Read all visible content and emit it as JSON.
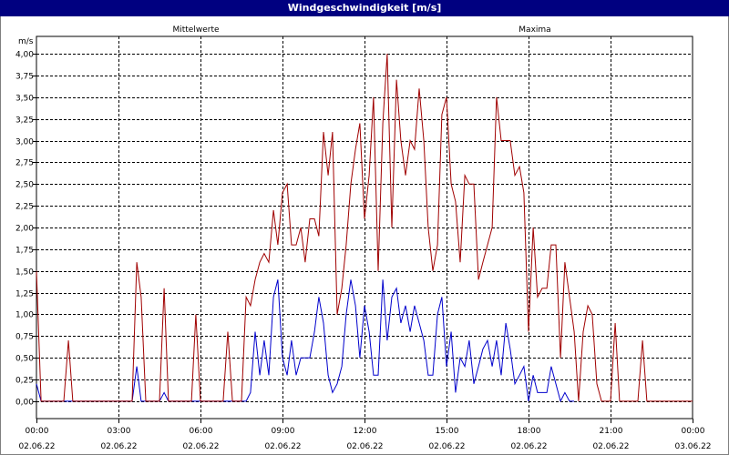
{
  "window": {
    "title": "Windgeschwindigkeit [m/s]"
  },
  "chart_data": {
    "type": "line",
    "title": "Windgeschwindigkeit [m/s]",
    "ylabel": "m/s",
    "xlabel": "",
    "xlim": [
      0,
      24
    ],
    "ylim": [
      -0.2,
      4.2
    ],
    "grid": true,
    "legend_placement": "top",
    "y_ticks": [
      {
        "v": 4.0,
        "label": "4,00"
      },
      {
        "v": 3.75,
        "label": "3,75"
      },
      {
        "v": 3.5,
        "label": "3,50"
      },
      {
        "v": 3.25,
        "label": "3,25"
      },
      {
        "v": 3.0,
        "label": "3,00"
      },
      {
        "v": 2.75,
        "label": "2,75"
      },
      {
        "v": 2.5,
        "label": "2,50"
      },
      {
        "v": 2.25,
        "label": "2,25"
      },
      {
        "v": 2.0,
        "label": "2,00"
      },
      {
        "v": 1.75,
        "label": "1,75"
      },
      {
        "v": 1.5,
        "label": "1,50"
      },
      {
        "v": 1.25,
        "label": "1,25"
      },
      {
        "v": 1.0,
        "label": "1,00"
      },
      {
        "v": 0.75,
        "label": "0,75"
      },
      {
        "v": 0.5,
        "label": "0,50"
      },
      {
        "v": 0.25,
        "label": "0,25"
      },
      {
        "v": 0.0,
        "label": "0,00"
      }
    ],
    "x_ticks": [
      {
        "v": 0,
        "time": "00:00",
        "date": "02.06.22"
      },
      {
        "v": 3,
        "time": "03:00",
        "date": "02.06.22"
      },
      {
        "v": 6,
        "time": "06:00",
        "date": "02.06.22"
      },
      {
        "v": 9,
        "time": "09:00",
        "date": "02.06.22"
      },
      {
        "v": 12,
        "time": "12:00",
        "date": "02.06.22"
      },
      {
        "v": 15,
        "time": "15:00",
        "date": "02.06.22"
      },
      {
        "v": 18,
        "time": "18:00",
        "date": "02.06.22"
      },
      {
        "v": 21,
        "time": "21:00",
        "date": "02.06.22"
      },
      {
        "v": 24,
        "time": "00:00",
        "date": "03.06.22"
      }
    ],
    "series": [
      {
        "name": "Mittelwerte",
        "color": "#0000cc",
        "points": [
          [
            0,
            0.2
          ],
          [
            0.17,
            0
          ],
          [
            3.5,
            0
          ],
          [
            3.67,
            0.4
          ],
          [
            3.83,
            0
          ],
          [
            4.5,
            0
          ],
          [
            4.67,
            0.1
          ],
          [
            4.83,
            0
          ],
          [
            7.67,
            0
          ],
          [
            7.83,
            0.1
          ],
          [
            8,
            0.8
          ],
          [
            8.17,
            0.3
          ],
          [
            8.33,
            0.7
          ],
          [
            8.5,
            0.3
          ],
          [
            8.67,
            1.2
          ],
          [
            8.83,
            1.4
          ],
          [
            9,
            0.5
          ],
          [
            9.17,
            0.3
          ],
          [
            9.33,
            0.7
          ],
          [
            9.5,
            0.3
          ],
          [
            9.67,
            0.5
          ],
          [
            10,
            0.5
          ],
          [
            10.17,
            0.8
          ],
          [
            10.33,
            1.2
          ],
          [
            10.5,
            0.9
          ],
          [
            10.67,
            0.3
          ],
          [
            10.83,
            0.1
          ],
          [
            11,
            0.2
          ],
          [
            11.17,
            0.4
          ],
          [
            11.33,
            1.0
          ],
          [
            11.5,
            1.4
          ],
          [
            11.67,
            1.1
          ],
          [
            11.83,
            0.5
          ],
          [
            12,
            1.1
          ],
          [
            12.17,
            0.8
          ],
          [
            12.33,
            0.3
          ],
          [
            12.5,
            0.3
          ],
          [
            12.67,
            1.4
          ],
          [
            12.83,
            0.7
          ],
          [
            13,
            1.2
          ],
          [
            13.17,
            1.3
          ],
          [
            13.33,
            0.9
          ],
          [
            13.5,
            1.1
          ],
          [
            13.67,
            0.8
          ],
          [
            13.83,
            1.1
          ],
          [
            14,
            0.9
          ],
          [
            14.17,
            0.7
          ],
          [
            14.33,
            0.3
          ],
          [
            14.5,
            0.3
          ],
          [
            14.67,
            1.0
          ],
          [
            14.83,
            1.2
          ],
          [
            15,
            0.4
          ],
          [
            15.17,
            0.8
          ],
          [
            15.33,
            0.1
          ],
          [
            15.5,
            0.5
          ],
          [
            15.67,
            0.4
          ],
          [
            15.83,
            0.7
          ],
          [
            16,
            0.2
          ],
          [
            16.17,
            0.4
          ],
          [
            16.33,
            0.6
          ],
          [
            16.5,
            0.7
          ],
          [
            16.67,
            0.4
          ],
          [
            16.83,
            0.7
          ],
          [
            17,
            0.3
          ],
          [
            17.17,
            0.9
          ],
          [
            17.33,
            0.6
          ],
          [
            17.5,
            0.2
          ],
          [
            17.67,
            0.3
          ],
          [
            17.83,
            0.4
          ],
          [
            18,
            0
          ],
          [
            18.17,
            0.3
          ],
          [
            18.33,
            0.1
          ],
          [
            18.67,
            0.1
          ],
          [
            18.83,
            0.4
          ],
          [
            19,
            0.2
          ],
          [
            19.17,
            0
          ],
          [
            19.33,
            0.1
          ],
          [
            19.5,
            0
          ],
          [
            19.67,
            0
          ]
        ]
      },
      {
        "name": "Maxima",
        "color": "#a00000",
        "points": [
          [
            0,
            1.5
          ],
          [
            0.17,
            0
          ],
          [
            1.0,
            0
          ],
          [
            1.17,
            0.7
          ],
          [
            1.33,
            0
          ],
          [
            3.5,
            0
          ],
          [
            3.67,
            1.6
          ],
          [
            3.83,
            1.2
          ],
          [
            4.0,
            0
          ],
          [
            4.5,
            0
          ],
          [
            4.67,
            1.3
          ],
          [
            4.83,
            0
          ],
          [
            5.67,
            0
          ],
          [
            5.83,
            1.0
          ],
          [
            6.0,
            0
          ],
          [
            6.83,
            0
          ],
          [
            7.0,
            0.8
          ],
          [
            7.17,
            0
          ],
          [
            7.5,
            0
          ],
          [
            7.67,
            1.2
          ],
          [
            7.83,
            1.1
          ],
          [
            8,
            1.4
          ],
          [
            8.17,
            1.6
          ],
          [
            8.33,
            1.7
          ],
          [
            8.5,
            1.6
          ],
          [
            8.67,
            2.2
          ],
          [
            8.83,
            1.8
          ],
          [
            9,
            2.4
          ],
          [
            9.17,
            2.5
          ],
          [
            9.33,
            1.8
          ],
          [
            9.5,
            1.8
          ],
          [
            9.67,
            2.0
          ],
          [
            9.83,
            1.6
          ],
          [
            10,
            2.1
          ],
          [
            10.17,
            2.1
          ],
          [
            10.33,
            1.9
          ],
          [
            10.5,
            3.1
          ],
          [
            10.67,
            2.6
          ],
          [
            10.83,
            3.1
          ],
          [
            11,
            1.0
          ],
          [
            11.17,
            1.3
          ],
          [
            11.33,
            1.8
          ],
          [
            11.5,
            2.5
          ],
          [
            11.67,
            2.9
          ],
          [
            11.83,
            3.2
          ],
          [
            12,
            2.1
          ],
          [
            12.17,
            2.6
          ],
          [
            12.33,
            3.5
          ],
          [
            12.5,
            1.5
          ],
          [
            12.67,
            3.2
          ],
          [
            12.83,
            4.0
          ],
          [
            13,
            2.0
          ],
          [
            13.17,
            3.7
          ],
          [
            13.33,
            3.0
          ],
          [
            13.5,
            2.6
          ],
          [
            13.67,
            3.0
          ],
          [
            13.83,
            2.9
          ],
          [
            14,
            3.6
          ],
          [
            14.17,
            3.0
          ],
          [
            14.33,
            2.0
          ],
          [
            14.5,
            1.5
          ],
          [
            14.67,
            1.8
          ],
          [
            14.83,
            3.3
          ],
          [
            15,
            3.5
          ],
          [
            15.17,
            2.5
          ],
          [
            15.33,
            2.3
          ],
          [
            15.5,
            1.6
          ],
          [
            15.67,
            2.6
          ],
          [
            15.83,
            2.5
          ],
          [
            16,
            2.5
          ],
          [
            16.17,
            1.4
          ],
          [
            16.33,
            1.6
          ],
          [
            16.5,
            1.8
          ],
          [
            16.67,
            2.0
          ],
          [
            16.83,
            3.5
          ],
          [
            17,
            3.0
          ],
          [
            17.17,
            3.0
          ],
          [
            17.33,
            3.0
          ],
          [
            17.5,
            2.6
          ],
          [
            17.67,
            2.7
          ],
          [
            17.83,
            2.4
          ],
          [
            18,
            0.8
          ],
          [
            18.17,
            2.0
          ],
          [
            18.33,
            1.2
          ],
          [
            18.5,
            1.3
          ],
          [
            18.67,
            1.3
          ],
          [
            18.83,
            1.8
          ],
          [
            19,
            1.8
          ],
          [
            19.17,
            0.5
          ],
          [
            19.33,
            1.6
          ],
          [
            19.5,
            1.2
          ],
          [
            19.67,
            0.8
          ],
          [
            19.83,
            0
          ],
          [
            20.0,
            0.8
          ],
          [
            20.17,
            1.1
          ],
          [
            20.33,
            1.0
          ],
          [
            20.5,
            0.2
          ],
          [
            20.67,
            0
          ],
          [
            21.0,
            0
          ],
          [
            21.17,
            0.9
          ],
          [
            21.33,
            0
          ],
          [
            22.0,
            0
          ],
          [
            22.17,
            0.7
          ],
          [
            22.33,
            0
          ],
          [
            24,
            0
          ]
        ]
      }
    ]
  }
}
